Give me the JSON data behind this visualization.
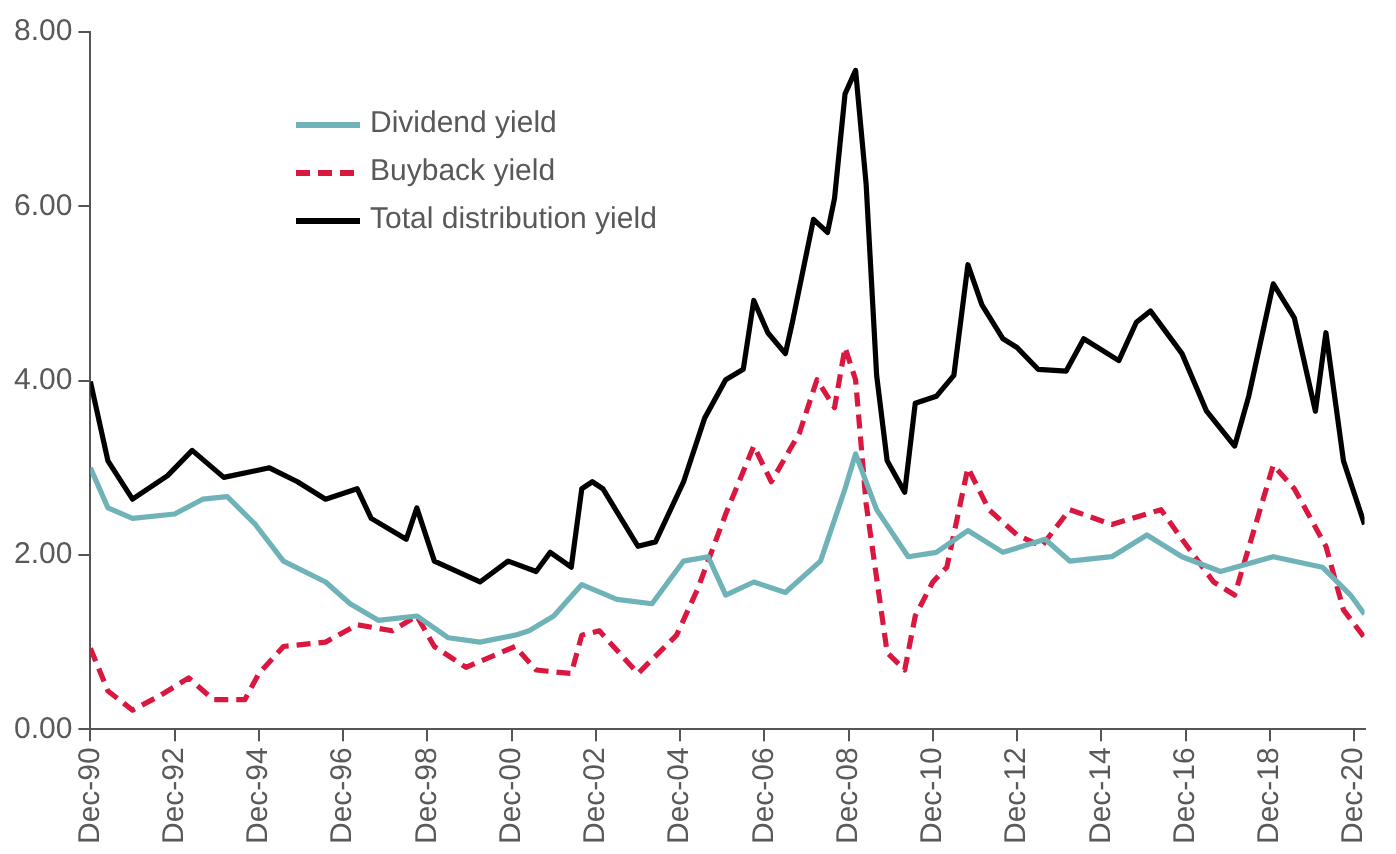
{
  "chart_data": {
    "type": "line",
    "xlim": [
      "1990-12",
      "2021-03"
    ],
    "xticks": [
      {
        "value": "1990-12",
        "label": "Dec-90"
      },
      {
        "value": "1992-12",
        "label": "Dec-92"
      },
      {
        "value": "1994-12",
        "label": "Dec-94"
      },
      {
        "value": "1996-12",
        "label": "Dec-96"
      },
      {
        "value": "1998-12",
        "label": "Dec-98"
      },
      {
        "value": "2000-12",
        "label": "Dec-00"
      },
      {
        "value": "2002-12",
        "label": "Dec-02"
      },
      {
        "value": "2004-12",
        "label": "Dec-04"
      },
      {
        "value": "2006-12",
        "label": "Dec-06"
      },
      {
        "value": "2008-12",
        "label": "Dec-08"
      },
      {
        "value": "2010-12",
        "label": "Dec-10"
      },
      {
        "value": "2012-12",
        "label": "Dec-12"
      },
      {
        "value": "2014-12",
        "label": "Dec-14"
      },
      {
        "value": "2016-12",
        "label": "Dec-16"
      },
      {
        "value": "2018-12",
        "label": "Dec-18"
      },
      {
        "value": "2020-12",
        "label": "Dec-20"
      }
    ],
    "ylim": [
      0,
      8
    ],
    "yticks": [
      {
        "value": 0,
        "label": "0.00"
      },
      {
        "value": 2,
        "label": "2.00"
      },
      {
        "value": 4,
        "label": "4.00"
      },
      {
        "value": 6,
        "label": "6.00"
      },
      {
        "value": 8,
        "label": "8.00"
      }
    ],
    "grid": false,
    "legend": "top left",
    "marker": "none",
    "series": [
      {
        "name": "Dividend yield",
        "color": "#6fb3b8",
        "line_style": "solid",
        "x": [
          "1990-12",
          "1991-05",
          "1991-12",
          "1992-12",
          "1993-08",
          "1994-03",
          "1994-11",
          "1995-07",
          "1996-07",
          "1997-02",
          "1997-10",
          "1998-09",
          "1999-06",
          "2000-03",
          "2001-01",
          "2001-05",
          "2001-12",
          "2002-08",
          "2003-06",
          "2004-04",
          "2005-01",
          "2005-08",
          "2006-01",
          "2006-09",
          "2007-06",
          "2008-04",
          "2008-11",
          "2009-02",
          "2009-08",
          "2010-05",
          "2011-01",
          "2011-10",
          "2012-08",
          "2013-08",
          "2014-03",
          "2015-03",
          "2016-01",
          "2016-11",
          "2017-10",
          "2019-01",
          "2020-03",
          "2020-11",
          "2021-03"
        ],
        "values": [
          3.0,
          2.54,
          2.42,
          2.47,
          2.64,
          2.67,
          2.35,
          1.93,
          1.69,
          1.44,
          1.25,
          1.3,
          1.05,
          1.0,
          1.08,
          1.13,
          1.3,
          1.66,
          1.49,
          1.44,
          1.93,
          1.98,
          1.54,
          1.69,
          1.57,
          1.93,
          2.76,
          3.16,
          2.52,
          1.98,
          2.03,
          2.28,
          2.03,
          2.18,
          1.93,
          1.98,
          2.23,
          1.98,
          1.81,
          1.98,
          1.86,
          1.54,
          1.32
        ]
      },
      {
        "name": "Buyback yield",
        "color": "#d9173f",
        "line_style": "dashed",
        "x": [
          "1990-12",
          "1991-05",
          "1991-12",
          "1992-08",
          "1993-04",
          "1993-11",
          "1994-08",
          "1994-12",
          "1995-07",
          "1996-07",
          "1997-04",
          "1998-02",
          "1998-09",
          "1999-02",
          "1999-11",
          "2001-01",
          "2001-07",
          "2002-05",
          "2002-08",
          "2003-01",
          "2003-12",
          "2004-11",
          "2005-05",
          "2006-01",
          "2006-09",
          "2007-02",
          "2007-10",
          "2008-03",
          "2008-08",
          "2008-11",
          "2009-02",
          "2009-05",
          "2009-11",
          "2010-04",
          "2010-07",
          "2010-12",
          "2011-04",
          "2011-10",
          "2012-04",
          "2012-12",
          "2013-07",
          "2014-03",
          "2015-03",
          "2016-05",
          "2016-11",
          "2017-08",
          "2018-02",
          "2019-01",
          "2019-07",
          "2020-04",
          "2020-09",
          "2021-03"
        ],
        "values": [
          0.93,
          0.44,
          0.22,
          0.39,
          0.59,
          0.34,
          0.34,
          0.64,
          0.95,
          1.0,
          1.2,
          1.13,
          1.3,
          0.95,
          0.71,
          0.95,
          0.68,
          0.64,
          1.08,
          1.13,
          0.64,
          1.08,
          1.61,
          2.47,
          3.25,
          2.84,
          3.4,
          4.01,
          3.69,
          4.38,
          4.01,
          2.59,
          0.88,
          0.68,
          1.3,
          1.69,
          1.86,
          3.0,
          2.52,
          2.23,
          2.1,
          2.52,
          2.35,
          2.52,
          2.18,
          1.69,
          1.54,
          3.03,
          2.76,
          2.1,
          1.37,
          1.05
        ]
      },
      {
        "name": "Total distribution yield",
        "color": "#000000",
        "line_style": "solid",
        "x": [
          "1990-12",
          "1991-05",
          "1991-12",
          "1992-10",
          "1993-05",
          "1994-02",
          "1995-03",
          "1995-11",
          "1996-07",
          "1997-04",
          "1997-08",
          "1998-06",
          "1998-09",
          "1999-02",
          "2000-03",
          "2000-11",
          "2001-07",
          "2001-11",
          "2002-05",
          "2002-08",
          "2002-11",
          "2003-02",
          "2003-12",
          "2004-05",
          "2005-01",
          "2005-07",
          "2006-01",
          "2006-06",
          "2006-09",
          "2007-01",
          "2007-06",
          "2007-08",
          "2008-02",
          "2008-06",
          "2008-08",
          "2008-11",
          "2009-02",
          "2009-05",
          "2009-08",
          "2009-11",
          "2010-04",
          "2010-07",
          "2011-01",
          "2011-06",
          "2011-10",
          "2012-02",
          "2012-08",
          "2012-12",
          "2013-06",
          "2014-02",
          "2014-07",
          "2015-05",
          "2015-10",
          "2016-02",
          "2016-11",
          "2017-06",
          "2018-02",
          "2018-06",
          "2019-01",
          "2019-07",
          "2020-01",
          "2020-04",
          "2020-09",
          "2021-03"
        ],
        "values": [
          3.99,
          3.08,
          2.64,
          2.91,
          3.2,
          2.89,
          3.0,
          2.84,
          2.64,
          2.76,
          2.42,
          2.18,
          2.54,
          1.93,
          1.69,
          1.93,
          1.81,
          2.03,
          1.86,
          2.76,
          2.84,
          2.76,
          2.1,
          2.15,
          2.84,
          3.57,
          4.01,
          4.13,
          4.92,
          4.55,
          4.31,
          4.67,
          5.85,
          5.7,
          6.09,
          7.29,
          7.56,
          6.26,
          4.06,
          3.08,
          2.72,
          3.74,
          3.82,
          4.06,
          5.33,
          4.87,
          4.48,
          4.38,
          4.13,
          4.11,
          4.48,
          4.23,
          4.67,
          4.8,
          4.31,
          3.65,
          3.25,
          3.82,
          5.11,
          4.72,
          3.65,
          4.55,
          3.08,
          2.35
        ]
      }
    ]
  }
}
